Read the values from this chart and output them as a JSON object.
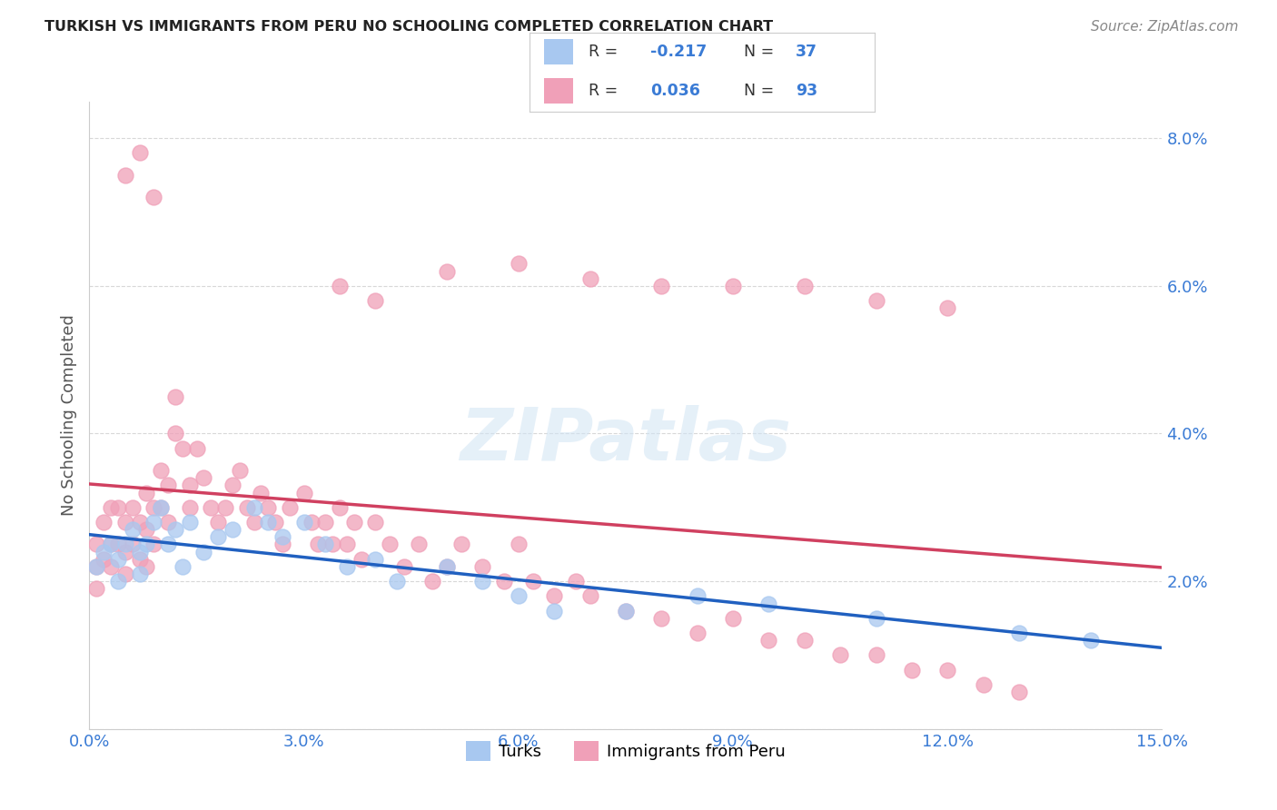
{
  "title": "TURKISH VS IMMIGRANTS FROM PERU NO SCHOOLING COMPLETED CORRELATION CHART",
  "source": "Source: ZipAtlas.com",
  "ylabel": "No Schooling Completed",
  "xlim": [
    0.0,
    0.15
  ],
  "ylim": [
    0.0,
    0.085
  ],
  "xticks": [
    0.0,
    0.03,
    0.06,
    0.09,
    0.12,
    0.15
  ],
  "xtick_labels": [
    "0.0%",
    "3.0%",
    "6.0%",
    "9.0%",
    "12.0%",
    "15.0%"
  ],
  "yticks": [
    0.0,
    0.02,
    0.04,
    0.06,
    0.08
  ],
  "ytick_labels": [
    "",
    "2.0%",
    "4.0%",
    "6.0%",
    "8.0%"
  ],
  "turks_color": "#a8c8f0",
  "peru_color": "#f0a0b8",
  "turks_line_color": "#2060c0",
  "peru_line_color": "#d04060",
  "watermark": "ZIPatlas",
  "background_color": "#ffffff",
  "grid_color": "#d8d8d8",
  "turks_x": [
    0.001,
    0.002,
    0.003,
    0.004,
    0.004,
    0.005,
    0.006,
    0.007,
    0.007,
    0.008,
    0.009,
    0.01,
    0.011,
    0.012,
    0.013,
    0.014,
    0.016,
    0.018,
    0.02,
    0.023,
    0.025,
    0.027,
    0.03,
    0.033,
    0.036,
    0.04,
    0.043,
    0.05,
    0.055,
    0.06,
    0.065,
    0.075,
    0.085,
    0.095,
    0.11,
    0.13,
    0.14
  ],
  "turks_y": [
    0.022,
    0.024,
    0.025,
    0.023,
    0.02,
    0.025,
    0.027,
    0.024,
    0.021,
    0.025,
    0.028,
    0.03,
    0.025,
    0.027,
    0.022,
    0.028,
    0.024,
    0.026,
    0.027,
    0.03,
    0.028,
    0.026,
    0.028,
    0.025,
    0.022,
    0.023,
    0.02,
    0.022,
    0.02,
    0.018,
    0.016,
    0.016,
    0.018,
    0.017,
    0.015,
    0.013,
    0.012
  ],
  "peru_x": [
    0.001,
    0.001,
    0.001,
    0.002,
    0.002,
    0.003,
    0.003,
    0.003,
    0.004,
    0.004,
    0.005,
    0.005,
    0.005,
    0.006,
    0.006,
    0.007,
    0.007,
    0.008,
    0.008,
    0.008,
    0.009,
    0.009,
    0.01,
    0.01,
    0.011,
    0.011,
    0.012,
    0.012,
    0.013,
    0.014,
    0.014,
    0.015,
    0.016,
    0.017,
    0.018,
    0.019,
    0.02,
    0.021,
    0.022,
    0.023,
    0.024,
    0.025,
    0.026,
    0.027,
    0.028,
    0.03,
    0.031,
    0.032,
    0.033,
    0.034,
    0.035,
    0.036,
    0.037,
    0.038,
    0.04,
    0.042,
    0.044,
    0.046,
    0.048,
    0.05,
    0.052,
    0.055,
    0.058,
    0.06,
    0.062,
    0.065,
    0.068,
    0.07,
    0.075,
    0.08,
    0.085,
    0.09,
    0.095,
    0.1,
    0.105,
    0.11,
    0.115,
    0.12,
    0.125,
    0.13,
    0.035,
    0.04,
    0.05,
    0.06,
    0.07,
    0.08,
    0.09,
    0.1,
    0.11,
    0.12,
    0.005,
    0.007,
    0.009
  ],
  "peru_y": [
    0.025,
    0.022,
    0.019,
    0.028,
    0.023,
    0.03,
    0.025,
    0.022,
    0.03,
    0.025,
    0.028,
    0.024,
    0.021,
    0.03,
    0.025,
    0.028,
    0.023,
    0.032,
    0.027,
    0.022,
    0.03,
    0.025,
    0.035,
    0.03,
    0.033,
    0.028,
    0.045,
    0.04,
    0.038,
    0.033,
    0.03,
    0.038,
    0.034,
    0.03,
    0.028,
    0.03,
    0.033,
    0.035,
    0.03,
    0.028,
    0.032,
    0.03,
    0.028,
    0.025,
    0.03,
    0.032,
    0.028,
    0.025,
    0.028,
    0.025,
    0.03,
    0.025,
    0.028,
    0.023,
    0.028,
    0.025,
    0.022,
    0.025,
    0.02,
    0.022,
    0.025,
    0.022,
    0.02,
    0.025,
    0.02,
    0.018,
    0.02,
    0.018,
    0.016,
    0.015,
    0.013,
    0.015,
    0.012,
    0.012,
    0.01,
    0.01,
    0.008,
    0.008,
    0.006,
    0.005,
    0.06,
    0.058,
    0.062,
    0.063,
    0.061,
    0.06,
    0.06,
    0.06,
    0.058,
    0.057,
    0.075,
    0.078,
    0.072
  ]
}
